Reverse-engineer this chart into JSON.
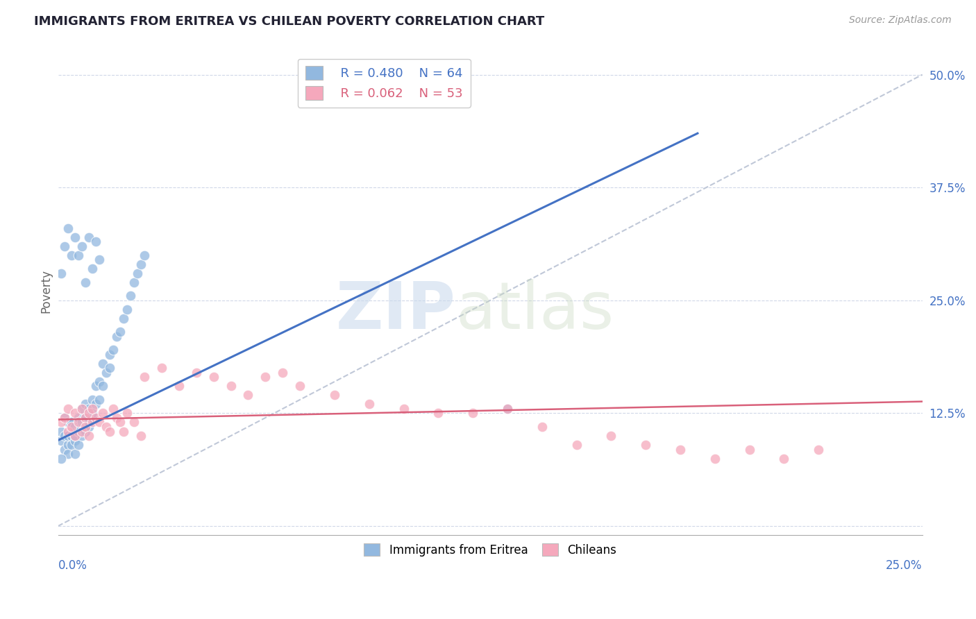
{
  "title": "IMMIGRANTS FROM ERITREA VS CHILEAN POVERTY CORRELATION CHART",
  "source": "Source: ZipAtlas.com",
  "ylabel": "Poverty",
  "yticks": [
    0.0,
    0.125,
    0.25,
    0.375,
    0.5
  ],
  "ytick_labels": [
    "",
    "12.5%",
    "25.0%",
    "37.5%",
    "50.0%"
  ],
  "xlim": [
    0.0,
    0.25
  ],
  "ylim": [
    -0.01,
    0.53
  ],
  "legend_r1": "R = 0.480",
  "legend_n1": "N = 64",
  "legend_r2": "R = 0.062",
  "legend_n2": "N = 53",
  "label1": "Immigrants from Eritrea",
  "label2": "Chileans",
  "color1": "#92b8df",
  "color2": "#f5a8bc",
  "trendline1_color": "#4472c4",
  "trendline2_color": "#d9607a",
  "refline_color": "#c0c8d8",
  "trendline1_x0": 0.0,
  "trendline1_y0": 0.095,
  "trendline1_x1": 0.185,
  "trendline1_y1": 0.435,
  "trendline2_x0": 0.0,
  "trendline2_y0": 0.118,
  "trendline2_x1": 0.25,
  "trendline2_y1": 0.138,
  "refline_x0": 0.0,
  "refline_y0": 0.0,
  "refline_x1": 0.25,
  "refline_y1": 0.5,
  "scatter1_x": [
    0.001,
    0.001,
    0.002,
    0.002,
    0.002,
    0.003,
    0.003,
    0.003,
    0.003,
    0.004,
    0.004,
    0.004,
    0.005,
    0.005,
    0.005,
    0.005,
    0.006,
    0.006,
    0.006,
    0.007,
    0.007,
    0.007,
    0.008,
    0.008,
    0.008,
    0.009,
    0.009,
    0.009,
    0.01,
    0.01,
    0.01,
    0.011,
    0.011,
    0.012,
    0.012,
    0.013,
    0.013,
    0.014,
    0.015,
    0.015,
    0.016,
    0.017,
    0.018,
    0.019,
    0.02,
    0.021,
    0.022,
    0.023,
    0.024,
    0.025,
    0.001,
    0.002,
    0.003,
    0.004,
    0.005,
    0.006,
    0.007,
    0.008,
    0.009,
    0.01,
    0.011,
    0.012,
    0.13,
    0.001
  ],
  "scatter1_y": [
    0.095,
    0.105,
    0.1,
    0.12,
    0.085,
    0.09,
    0.1,
    0.115,
    0.08,
    0.09,
    0.1,
    0.115,
    0.08,
    0.095,
    0.11,
    0.1,
    0.09,
    0.105,
    0.12,
    0.1,
    0.115,
    0.13,
    0.105,
    0.12,
    0.135,
    0.11,
    0.13,
    0.115,
    0.12,
    0.14,
    0.125,
    0.135,
    0.155,
    0.14,
    0.16,
    0.155,
    0.18,
    0.17,
    0.19,
    0.175,
    0.195,
    0.21,
    0.215,
    0.23,
    0.24,
    0.255,
    0.27,
    0.28,
    0.29,
    0.3,
    0.28,
    0.31,
    0.33,
    0.3,
    0.32,
    0.3,
    0.31,
    0.27,
    0.32,
    0.285,
    0.315,
    0.295,
    0.13,
    0.075
  ],
  "scatter2_x": [
    0.001,
    0.002,
    0.003,
    0.003,
    0.004,
    0.005,
    0.005,
    0.006,
    0.007,
    0.007,
    0.008,
    0.008,
    0.009,
    0.009,
    0.01,
    0.01,
    0.011,
    0.012,
    0.013,
    0.014,
    0.015,
    0.016,
    0.017,
    0.018,
    0.019,
    0.02,
    0.022,
    0.024,
    0.025,
    0.03,
    0.035,
    0.04,
    0.045,
    0.05,
    0.055,
    0.06,
    0.065,
    0.07,
    0.08,
    0.09,
    0.1,
    0.11,
    0.12,
    0.13,
    0.14,
    0.15,
    0.16,
    0.17,
    0.18,
    0.19,
    0.2,
    0.21,
    0.22
  ],
  "scatter2_y": [
    0.115,
    0.12,
    0.105,
    0.13,
    0.11,
    0.1,
    0.125,
    0.115,
    0.105,
    0.13,
    0.12,
    0.11,
    0.125,
    0.1,
    0.115,
    0.13,
    0.12,
    0.115,
    0.125,
    0.11,
    0.105,
    0.13,
    0.12,
    0.115,
    0.105,
    0.125,
    0.115,
    0.1,
    0.165,
    0.175,
    0.155,
    0.17,
    0.165,
    0.155,
    0.145,
    0.165,
    0.17,
    0.155,
    0.145,
    0.135,
    0.13,
    0.125,
    0.125,
    0.13,
    0.11,
    0.09,
    0.1,
    0.09,
    0.085,
    0.075,
    0.085,
    0.075,
    0.085
  ]
}
